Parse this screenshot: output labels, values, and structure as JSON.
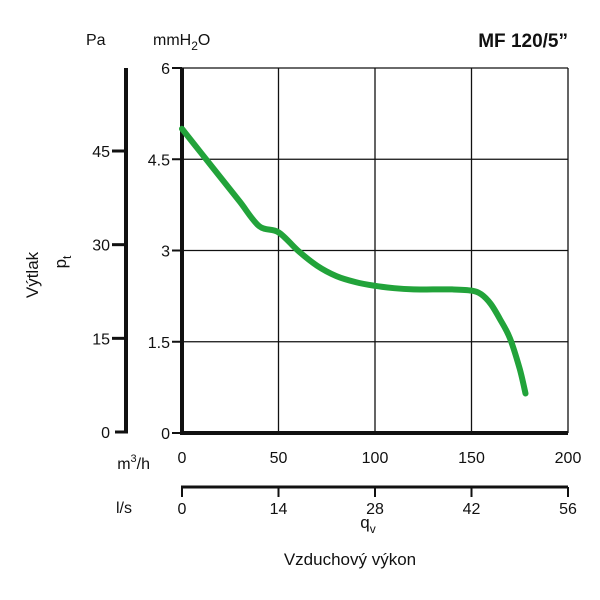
{
  "chart_data": {
    "type": "line",
    "title": "MF 120/5”",
    "y_axis_left": {
      "unit": "Pa",
      "ticks": [
        "0",
        "15",
        "30",
        "45"
      ],
      "values": [
        0,
        15,
        30,
        45
      ]
    },
    "y_axis_right": {
      "unit_prefix": "mmH",
      "unit_sub": "2",
      "unit_suffix": "O",
      "ticks": [
        "0",
        "1.5",
        "3",
        "4.5",
        "6"
      ],
      "values": [
        0,
        1.5,
        3,
        4.5,
        6
      ],
      "ylim": [
        0,
        6
      ]
    },
    "ylabel": "Výtlak",
    "ysymbol": "p",
    "ysymbol_sub": "t",
    "x_axis_main": {
      "unit": "m³/h",
      "unit_base": "m",
      "unit_sup": "3",
      "unit_rest": "/h",
      "ticks": [
        "0",
        "50",
        "100",
        "150",
        "200"
      ],
      "values": [
        0,
        50,
        100,
        150,
        200
      ],
      "xlim": [
        0,
        200
      ]
    },
    "x_axis_secondary": {
      "unit": "l/s",
      "ticks": [
        "0",
        "14",
        "28",
        "42",
        "56"
      ],
      "values": [
        0,
        14,
        28,
        42,
        56
      ]
    },
    "xsymbol": "q",
    "xsymbol_sub": "v",
    "xlabel": "Vzduchový výkon",
    "grid": true,
    "series": [
      {
        "color": "#22a33a",
        "x": [
          0,
          10,
          20,
          30,
          40,
          50,
          60,
          70,
          80,
          90,
          100,
          110,
          120,
          130,
          140,
          150,
          155,
          160,
          165,
          170,
          175,
          178
        ],
        "y": [
          5.0,
          4.6,
          4.2,
          3.8,
          3.4,
          3.3,
          3.0,
          2.75,
          2.58,
          2.48,
          2.42,
          2.38,
          2.36,
          2.36,
          2.36,
          2.34,
          2.28,
          2.12,
          1.86,
          1.55,
          1.05,
          0.65
        ]
      }
    ]
  }
}
